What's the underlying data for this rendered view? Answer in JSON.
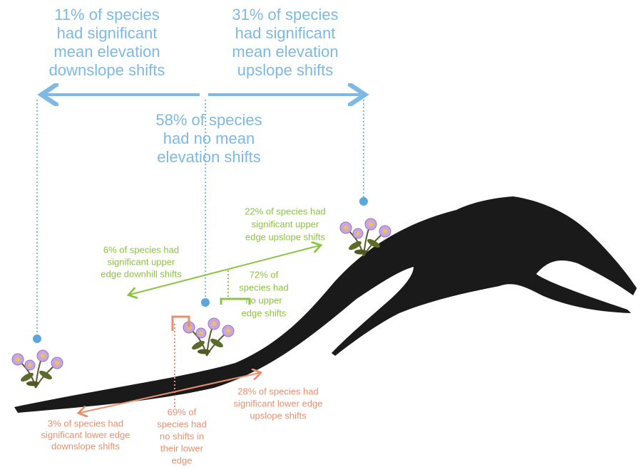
{
  "mean_elevation": {
    "downslope": [
      "11% of species",
      "had significant",
      "mean elevation",
      "downslope shifts"
    ],
    "upslope": [
      "31% of species",
      "had significant",
      "mean elevation",
      "upslope shifts"
    ],
    "none": [
      "58% of species",
      "had no mean",
      "elevation shifts"
    ]
  },
  "upper_edge": {
    "upslope": [
      "22% of species had",
      "significant upper",
      "edge upslope shifts"
    ],
    "downhill": [
      "6% of species had",
      "significant upper",
      "edge downhill shifts"
    ],
    "none": [
      "72% of",
      "species had",
      "no upper",
      "edge shifts"
    ]
  },
  "lower_edge": {
    "upslope": [
      "28% of species had",
      "significant lower edge",
      "upslope shifts"
    ],
    "downslope": [
      "3% of species had",
      "significant lower edge",
      "downslope shifts"
    ],
    "none": [
      "69% of",
      "species had",
      "no shifts in",
      "their lower",
      "edge"
    ]
  }
}
